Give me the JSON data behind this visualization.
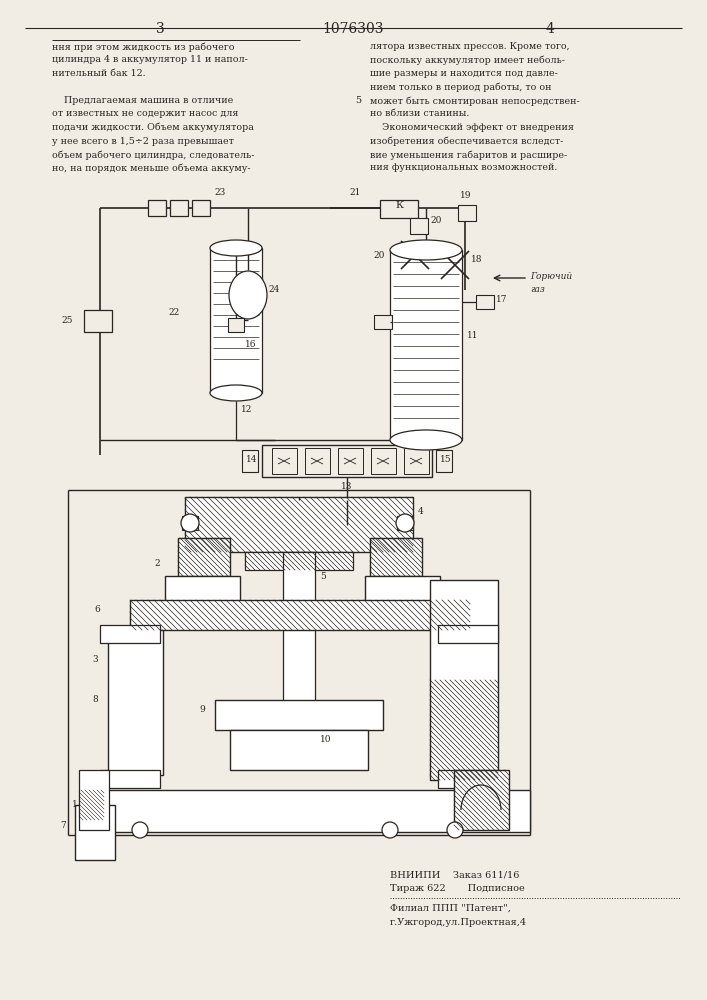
{
  "page_number_left": "3",
  "patent_number": "1076303",
  "page_number_right": "4",
  "text_left_col1": [
    "ння при этом жидкость из рабочего",
    "цилиндра 4 в аккумулятор 11 и напол-",
    "нительный бак 12.",
    "",
    "    Предлагаемая машина в отличие",
    "от известных не содержит насос для",
    "подачи жидкости. Объем аккумулятора",
    "у нее всего в 1,5÷2 раза превышает",
    "объем рабочего цилиндра, следователь-",
    "но, на порядок меньше объема аккуму-"
  ],
  "text_right_col2": [
    "лятора известных прессов. Кроме того,",
    "поскольку аккумулятор имеет неболь-",
    "шие размеры и находится под давле-",
    "нием только в период работы, то он",
    "может быть смонтирован непосредствен-",
    "но вблизи станины.",
    "    Экономический эффект от внедрения",
    "изобретения обеспечивается вследст-",
    "вие уменьшения габаритов и расшире-",
    "ния функциональных возможностей."
  ],
  "footer_line1": "ВНИИПИ    Заказ 611/16",
  "footer_line2": "Тираж 622       Подписное",
  "footer_line3": "Филиал ППП \"Патент\",",
  "footer_line4": "г.Ужгород,ул.Проектная,4",
  "bg_color": "#f2ede4",
  "text_color": "#2a2520",
  "line_color": "#2a2520",
  "hatch_color": "#2a2520"
}
